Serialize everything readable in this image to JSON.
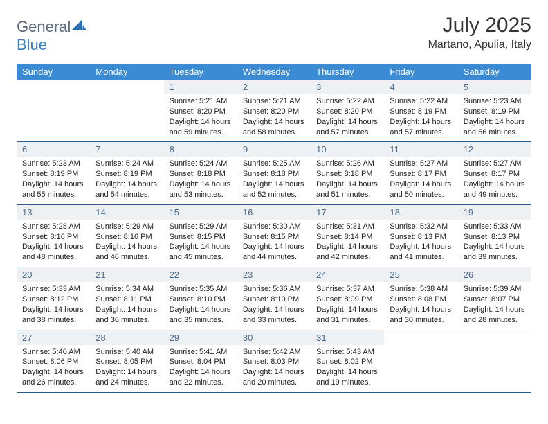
{
  "brand": {
    "part1": "General",
    "part2": "Blue",
    "logo_color": "#2f6fb0"
  },
  "title": "July 2025",
  "location": "Martano, Apulia, Italy",
  "colors": {
    "header_bg": "#3b8bd4",
    "header_text": "#ffffff",
    "daynum_bg": "#eef1f4",
    "daynum_text": "#4a6a8a",
    "cell_border": "#2a5a8a",
    "body_text": "#222222",
    "title_text": "#333333"
  },
  "day_headers": [
    "Sunday",
    "Monday",
    "Tuesday",
    "Wednesday",
    "Thursday",
    "Friday",
    "Saturday"
  ],
  "weeks": [
    [
      null,
      null,
      {
        "n": "1",
        "sr": "5:21 AM",
        "ss": "8:20 PM",
        "dl": "14 hours and 59 minutes."
      },
      {
        "n": "2",
        "sr": "5:21 AM",
        "ss": "8:20 PM",
        "dl": "14 hours and 58 minutes."
      },
      {
        "n": "3",
        "sr": "5:22 AM",
        "ss": "8:20 PM",
        "dl": "14 hours and 57 minutes."
      },
      {
        "n": "4",
        "sr": "5:22 AM",
        "ss": "8:19 PM",
        "dl": "14 hours and 57 minutes."
      },
      {
        "n": "5",
        "sr": "5:23 AM",
        "ss": "8:19 PM",
        "dl": "14 hours and 56 minutes."
      }
    ],
    [
      {
        "n": "6",
        "sr": "5:23 AM",
        "ss": "8:19 PM",
        "dl": "14 hours and 55 minutes."
      },
      {
        "n": "7",
        "sr": "5:24 AM",
        "ss": "8:19 PM",
        "dl": "14 hours and 54 minutes."
      },
      {
        "n": "8",
        "sr": "5:24 AM",
        "ss": "8:18 PM",
        "dl": "14 hours and 53 minutes."
      },
      {
        "n": "9",
        "sr": "5:25 AM",
        "ss": "8:18 PM",
        "dl": "14 hours and 52 minutes."
      },
      {
        "n": "10",
        "sr": "5:26 AM",
        "ss": "8:18 PM",
        "dl": "14 hours and 51 minutes."
      },
      {
        "n": "11",
        "sr": "5:27 AM",
        "ss": "8:17 PM",
        "dl": "14 hours and 50 minutes."
      },
      {
        "n": "12",
        "sr": "5:27 AM",
        "ss": "8:17 PM",
        "dl": "14 hours and 49 minutes."
      }
    ],
    [
      {
        "n": "13",
        "sr": "5:28 AM",
        "ss": "8:16 PM",
        "dl": "14 hours and 48 minutes."
      },
      {
        "n": "14",
        "sr": "5:29 AM",
        "ss": "8:16 PM",
        "dl": "14 hours and 46 minutes."
      },
      {
        "n": "15",
        "sr": "5:29 AM",
        "ss": "8:15 PM",
        "dl": "14 hours and 45 minutes."
      },
      {
        "n": "16",
        "sr": "5:30 AM",
        "ss": "8:15 PM",
        "dl": "14 hours and 44 minutes."
      },
      {
        "n": "17",
        "sr": "5:31 AM",
        "ss": "8:14 PM",
        "dl": "14 hours and 42 minutes."
      },
      {
        "n": "18",
        "sr": "5:32 AM",
        "ss": "8:13 PM",
        "dl": "14 hours and 41 minutes."
      },
      {
        "n": "19",
        "sr": "5:33 AM",
        "ss": "8:13 PM",
        "dl": "14 hours and 39 minutes."
      }
    ],
    [
      {
        "n": "20",
        "sr": "5:33 AM",
        "ss": "8:12 PM",
        "dl": "14 hours and 38 minutes."
      },
      {
        "n": "21",
        "sr": "5:34 AM",
        "ss": "8:11 PM",
        "dl": "14 hours and 36 minutes."
      },
      {
        "n": "22",
        "sr": "5:35 AM",
        "ss": "8:10 PM",
        "dl": "14 hours and 35 minutes."
      },
      {
        "n": "23",
        "sr": "5:36 AM",
        "ss": "8:10 PM",
        "dl": "14 hours and 33 minutes."
      },
      {
        "n": "24",
        "sr": "5:37 AM",
        "ss": "8:09 PM",
        "dl": "14 hours and 31 minutes."
      },
      {
        "n": "25",
        "sr": "5:38 AM",
        "ss": "8:08 PM",
        "dl": "14 hours and 30 minutes."
      },
      {
        "n": "26",
        "sr": "5:39 AM",
        "ss": "8:07 PM",
        "dl": "14 hours and 28 minutes."
      }
    ],
    [
      {
        "n": "27",
        "sr": "5:40 AM",
        "ss": "8:06 PM",
        "dl": "14 hours and 26 minutes."
      },
      {
        "n": "28",
        "sr": "5:40 AM",
        "ss": "8:05 PM",
        "dl": "14 hours and 24 minutes."
      },
      {
        "n": "29",
        "sr": "5:41 AM",
        "ss": "8:04 PM",
        "dl": "14 hours and 22 minutes."
      },
      {
        "n": "30",
        "sr": "5:42 AM",
        "ss": "8:03 PM",
        "dl": "14 hours and 20 minutes."
      },
      {
        "n": "31",
        "sr": "5:43 AM",
        "ss": "8:02 PM",
        "dl": "14 hours and 19 minutes."
      },
      null,
      null
    ]
  ],
  "labels": {
    "sunrise": "Sunrise:",
    "sunset": "Sunset:",
    "daylight": "Daylight:"
  }
}
